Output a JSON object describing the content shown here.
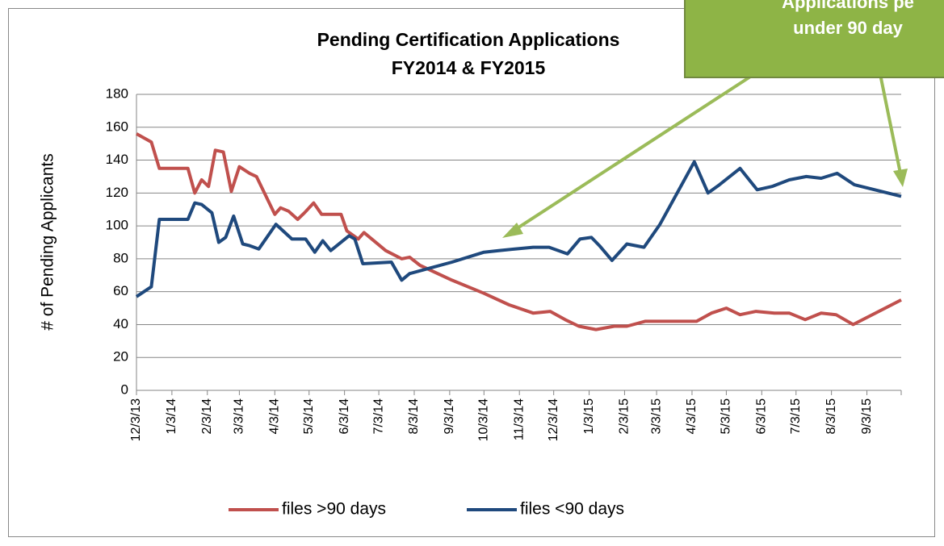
{
  "chart_data": {
    "type": "line",
    "title": "Pending Certification Applications",
    "subtitle": "FY2014 & FY2015",
    "y_label": "# of Pending Applicants",
    "annotation": [
      "Applications pe",
      "under 90 day"
    ],
    "annotation_color": "#8eb446",
    "xlim": [
      "2013-12-03",
      "2015-10-03"
    ],
    "xticks": [
      {
        "value": "2013-12-03",
        "label": "12/3/13"
      },
      {
        "value": "2014-01-03",
        "label": "1/3/14"
      },
      {
        "value": "2014-02-03",
        "label": "2/3/14"
      },
      {
        "value": "2014-03-03",
        "label": "3/3/14"
      },
      {
        "value": "2014-04-03",
        "label": "4/3/14"
      },
      {
        "value": "2014-05-03",
        "label": "5/3/14"
      },
      {
        "value": "2014-06-03",
        "label": "6/3/14"
      },
      {
        "value": "2014-07-03",
        "label": "7/3/14"
      },
      {
        "value": "2014-08-03",
        "label": "8/3/14"
      },
      {
        "value": "2014-09-03",
        "label": "9/3/14"
      },
      {
        "value": "2014-10-03",
        "label": "10/3/14"
      },
      {
        "value": "2014-11-03",
        "label": "11/3/14"
      },
      {
        "value": "2014-12-03",
        "label": "12/3/14"
      },
      {
        "value": "2015-01-03",
        "label": "1/3/15"
      },
      {
        "value": "2015-02-03",
        "label": "2/3/15"
      },
      {
        "value": "2015-03-03",
        "label": "3/3/15"
      },
      {
        "value": "2015-04-03",
        "label": "4/3/15"
      },
      {
        "value": "2015-05-03",
        "label": "5/3/15"
      },
      {
        "value": "2015-06-03",
        "label": "6/3/15"
      },
      {
        "value": "2015-07-03",
        "label": "7/3/15"
      },
      {
        "value": "2015-08-03",
        "label": "8/3/15"
      },
      {
        "value": "2015-09-03",
        "label": "9/3/15"
      }
    ],
    "ylim": [
      0,
      180
    ],
    "yticks": [
      0,
      20,
      40,
      60,
      80,
      100,
      120,
      140,
      160,
      180
    ],
    "grid": true,
    "legend": "bottom",
    "series": [
      {
        "name": "files >90 days",
        "color": "#c0504d",
        "x": [
          "2013-12-03",
          "2013-12-16",
          "2013-12-23",
          "2014-01-17",
          "2014-01-23",
          "2014-01-29",
          "2014-02-04",
          "2014-02-10",
          "2014-02-17",
          "2014-02-24",
          "2014-03-03",
          "2014-03-12",
          "2014-03-18",
          "2014-04-03",
          "2014-04-08",
          "2014-04-15",
          "2014-04-23",
          "2014-04-29",
          "2014-05-07",
          "2014-05-14",
          "2014-05-24",
          "2014-05-31",
          "2014-06-05",
          "2014-06-15",
          "2014-06-20",
          "2014-07-09",
          "2014-07-23",
          "2014-07-30",
          "2014-08-08",
          "2014-09-05",
          "2014-10-03",
          "2014-10-25",
          "2014-11-15",
          "2014-11-30",
          "2014-12-13",
          "2014-12-25",
          "2015-01-09",
          "2015-01-25",
          "2015-02-05",
          "2015-02-21",
          "2015-03-22",
          "2015-04-07",
          "2015-04-20",
          "2015-05-03",
          "2015-05-15",
          "2015-05-29",
          "2015-06-14",
          "2015-06-27",
          "2015-07-11",
          "2015-07-25",
          "2015-08-07",
          "2015-08-22",
          "2015-10-03"
        ],
        "values": [
          156,
          151,
          135,
          135,
          120,
          128,
          124,
          146,
          145,
          121,
          136,
          132,
          130,
          107,
          111,
          109,
          104,
          108,
          114,
          107,
          107,
          107,
          97,
          92,
          96,
          85,
          80,
          81,
          76,
          67,
          59,
          52,
          47,
          48,
          43,
          39,
          37,
          39,
          39,
          42,
          42,
          42,
          47,
          50,
          46,
          48,
          47,
          47,
          43,
          47,
          46,
          40,
          55
        ]
      },
      {
        "name": "files <90 days",
        "color": "#1f497d",
        "x": [
          "2013-12-03",
          "2013-12-16",
          "2013-12-23",
          "2014-01-17",
          "2014-01-23",
          "2014-01-29",
          "2014-02-07",
          "2014-02-13",
          "2014-02-19",
          "2014-02-26",
          "2014-03-06",
          "2014-03-12",
          "2014-03-20",
          "2014-04-04",
          "2014-04-18",
          "2014-04-30",
          "2014-05-08",
          "2014-05-15",
          "2014-05-22",
          "2014-06-07",
          "2014-06-12",
          "2014-06-19",
          "2014-07-14",
          "2014-07-23",
          "2014-07-30",
          "2014-08-15",
          "2014-09-05",
          "2014-10-03",
          "2014-10-16",
          "2014-10-30",
          "2014-11-15",
          "2014-11-29",
          "2014-12-15",
          "2014-12-26",
          "2015-01-05",
          "2015-01-12",
          "2015-01-23",
          "2015-02-05",
          "2015-02-20",
          "2015-03-06",
          "2015-04-05",
          "2015-04-17",
          "2015-04-27",
          "2015-05-15",
          "2015-05-30",
          "2015-06-12",
          "2015-06-27",
          "2015-07-12",
          "2015-07-25",
          "2015-08-08",
          "2015-08-23",
          "2015-10-03"
        ],
        "values": [
          57,
          63,
          104,
          104,
          114,
          113,
          108,
          90,
          93,
          106,
          89,
          88,
          86,
          101,
          92,
          92,
          84,
          91,
          85,
          94,
          92,
          77,
          78,
          67,
          71,
          74,
          78,
          84,
          85,
          86,
          87,
          87,
          83,
          92,
          93,
          88,
          79,
          89,
          87,
          101,
          139,
          120,
          125,
          135,
          122,
          124,
          128,
          130,
          129,
          132,
          125,
          118
        ]
      }
    ]
  }
}
